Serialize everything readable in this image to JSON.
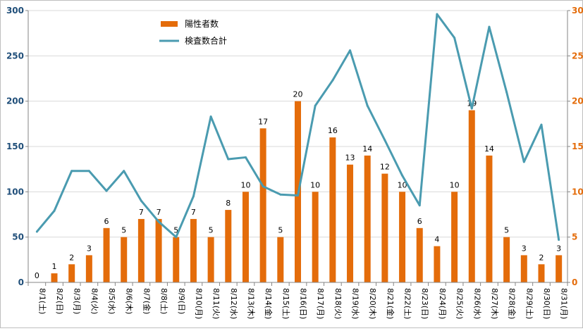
{
  "chart_data": {
    "type": "bar+line",
    "categories": [
      "8/1(土)",
      "8/2(日)",
      "8/3(月)",
      "8/4(火)",
      "8/5(水)",
      "8/6(木)",
      "8/7(金)",
      "8/8(土)",
      "8/9(日)",
      "8/10(月)",
      "8/11(火)",
      "8/12(水)",
      "8/13(木)",
      "8/14(金)",
      "8/15(土)",
      "8/16(日)",
      "8/17(月)",
      "8/18(火)",
      "8/19(水)",
      "8/20(木)",
      "8/21(金)",
      "8/22(土)",
      "8/23(日)",
      "8/24(月)",
      "8/25(火)",
      "8/26(水)",
      "8/27(木)",
      "8/28(金)",
      "8/29(土)",
      "8/30(日)",
      "8/31(月)"
    ],
    "series": [
      {
        "name": "陽性者数",
        "type": "bar",
        "axis": "right",
        "color": "#e46c0a",
        "values": [
          0,
          1,
          2,
          3,
          6,
          5,
          7,
          7,
          5,
          7,
          5,
          8,
          10,
          17,
          5,
          20,
          10,
          16,
          13,
          14,
          12,
          10,
          6,
          4,
          10,
          19,
          14,
          5,
          3,
          2,
          3
        ],
        "labels": [
          "0",
          "1",
          "2",
          "3",
          "6",
          "5",
          "7",
          "7",
          "5",
          "7",
          "5",
          "8",
          "10",
          "17",
          "5",
          "20",
          "10",
          "16",
          "13",
          "14",
          "12",
          "10",
          "6",
          "4",
          "10",
          "19",
          "14",
          "5",
          "3",
          "2",
          "3"
        ]
      },
      {
        "name": "検査数合計",
        "type": "line",
        "axis": "left",
        "color": "#4a9bb0",
        "values": [
          56,
          79,
          123,
          123,
          101,
          123,
          90,
          67,
          50,
          95,
          183,
          136,
          138,
          106,
          97,
          96,
          195,
          223,
          256,
          195,
          157,
          118,
          85,
          296,
          270,
          192,
          282,
          210,
          133,
          174,
          47
        ]
      }
    ],
    "y_left": {
      "ticks": [
        "0",
        "50",
        "100",
        "150",
        "200",
        "250",
        "300"
      ],
      "lim": [
        0,
        300
      ]
    },
    "y_right": {
      "ticks": [
        "0",
        "5",
        "10",
        "15",
        "20",
        "25",
        "30"
      ],
      "lim": [
        0,
        30
      ]
    },
    "legend_position": "top-left"
  }
}
